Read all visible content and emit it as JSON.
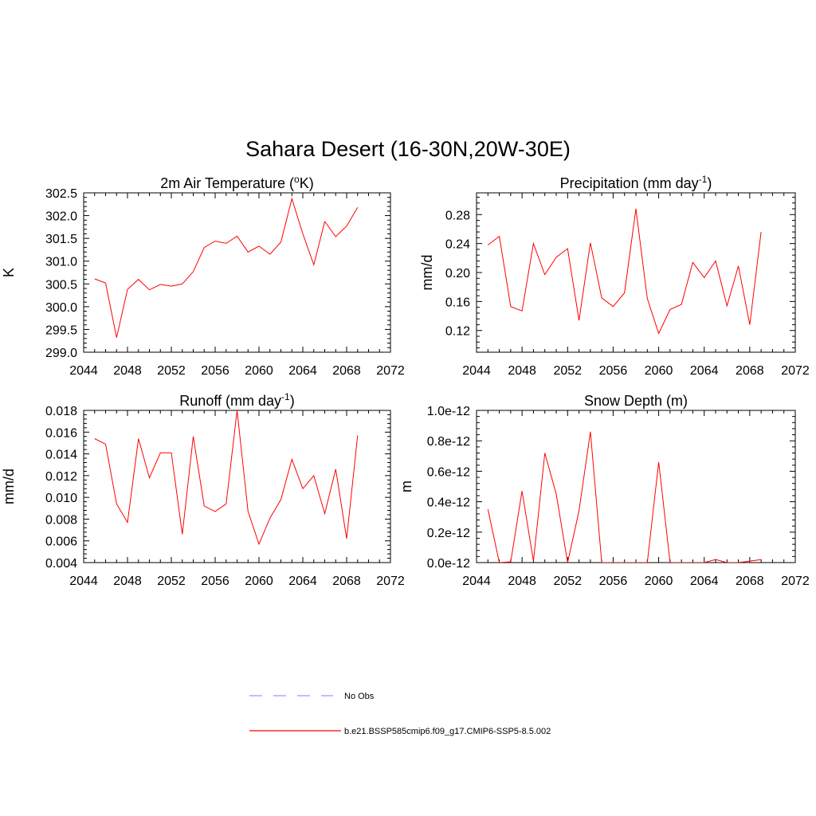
{
  "figure": {
    "title": "Sahara Desert (16-30N,20W-30E)",
    "series_color": "#ff0000",
    "obs_color": "#9999ff"
  },
  "legend": {
    "items": [
      {
        "label": "No Obs",
        "style": "dashed",
        "color": "#9999ff"
      },
      {
        "label": "b.e21.BSSP585cmip6.f09_g17.CMIP6-SSP5-8.5.002",
        "style": "solid",
        "color": "#ff0000"
      }
    ]
  },
  "chart_data": [
    {
      "type": "line",
      "title": "2m Air Temperature (",
      "title_sup": "o",
      "title_after": "K)",
      "ylabel": "K",
      "xlim": [
        2044,
        2072
      ],
      "ylim": [
        299.0,
        302.5
      ],
      "xticks": [
        "2044",
        "2048",
        "2052",
        "2056",
        "2060",
        "2064",
        "2068",
        "2072"
      ],
      "yticks": [
        "299.0",
        "299.5",
        "300.0",
        "300.5",
        "301.0",
        "301.5",
        "302.0",
        "302.5"
      ],
      "yticks_values": [
        299.0,
        299.5,
        300.0,
        300.5,
        301.0,
        301.5,
        302.0,
        302.5
      ],
      "series": [
        {
          "x": [
            2045,
            2046,
            2047,
            2048,
            2049,
            2050,
            2051,
            2052,
            2053,
            2054,
            2055,
            2056,
            2057,
            2058,
            2059,
            2060,
            2061,
            2062,
            2063,
            2064,
            2065,
            2066,
            2067,
            2068,
            2069
          ],
          "values": [
            300.61,
            300.52,
            299.32,
            300.38,
            300.6,
            300.37,
            300.49,
            300.45,
            300.5,
            300.77,
            301.3,
            301.44,
            301.39,
            301.55,
            301.2,
            301.33,
            301.15,
            301.42,
            302.37,
            301.6,
            300.92,
            301.87,
            301.54,
            301.77,
            302.18
          ]
        }
      ]
    },
    {
      "type": "line",
      "title": "Precipitation (mm day",
      "title_sup": "-1",
      "title_after": ")",
      "ylabel": "mm/d",
      "xlim": [
        2044,
        2072
      ],
      "ylim": [
        0.09,
        0.31
      ],
      "xticks": [
        "2044",
        "2048",
        "2052",
        "2056",
        "2060",
        "2064",
        "2068",
        "2072"
      ],
      "yticks": [
        "0.12",
        "0.16",
        "0.20",
        "0.24",
        "0.28"
      ],
      "yticks_values": [
        0.12,
        0.16,
        0.2,
        0.24,
        0.28
      ],
      "series": [
        {
          "x": [
            2045,
            2046,
            2047,
            2048,
            2049,
            2050,
            2051,
            2052,
            2053,
            2054,
            2055,
            2056,
            2057,
            2058,
            2059,
            2060,
            2061,
            2062,
            2063,
            2064,
            2065,
            2066,
            2067,
            2068,
            2069
          ],
          "values": [
            0.238,
            0.25,
            0.153,
            0.147,
            0.24,
            0.197,
            0.221,
            0.233,
            0.134,
            0.241,
            0.165,
            0.153,
            0.172,
            0.288,
            0.164,
            0.116,
            0.149,
            0.156,
            0.214,
            0.193,
            0.216,
            0.154,
            0.209,
            0.128,
            0.256
          ]
        }
      ]
    },
    {
      "type": "line",
      "title": "Runoff (mm day",
      "title_sup": "-1",
      "title_after": ")",
      "ylabel": "mm/d",
      "xlim": [
        2044,
        2072
      ],
      "ylim": [
        0.004,
        0.018
      ],
      "xticks": [
        "2044",
        "2048",
        "2052",
        "2056",
        "2060",
        "2064",
        "2068",
        "2072"
      ],
      "yticks": [
        "0.004",
        "0.006",
        "0.008",
        "0.010",
        "0.012",
        "0.014",
        "0.016",
        "0.018"
      ],
      "yticks_values": [
        0.004,
        0.006,
        0.008,
        0.01,
        0.012,
        0.014,
        0.016,
        0.018
      ],
      "series": [
        {
          "x": [
            2045,
            2046,
            2047,
            2048,
            2049,
            2050,
            2051,
            2052,
            2053,
            2054,
            2055,
            2056,
            2057,
            2058,
            2059,
            2060,
            2061,
            2062,
            2063,
            2064,
            2065,
            2066,
            2067,
            2068,
            2069
          ],
          "values": [
            0.0154,
            0.0149,
            0.0094,
            0.0077,
            0.0154,
            0.0118,
            0.0141,
            0.0141,
            0.0066,
            0.0156,
            0.0092,
            0.0087,
            0.0094,
            0.018,
            0.0087,
            0.0057,
            0.0081,
            0.0098,
            0.0135,
            0.0108,
            0.012,
            0.0085,
            0.0126,
            0.0062,
            0.0157
          ]
        }
      ]
    },
    {
      "type": "line",
      "title": "Snow Depth (m)",
      "title_sup": "",
      "title_after": "",
      "ylabel": "m",
      "xlim": [
        2044,
        2072
      ],
      "ylim": [
        0,
        1e-12
      ],
      "xticks": [
        "2044",
        "2048",
        "2052",
        "2056",
        "2060",
        "2064",
        "2068",
        "2072"
      ],
      "yticks": [
        "0.0e-12",
        "0.2e-12",
        "0.4e-12",
        "0.6e-12",
        "0.8e-12",
        "1.0e-12"
      ],
      "yticks_values": [
        0,
        2e-13,
        4e-13,
        6e-13,
        8e-13,
        1e-12
      ],
      "series": [
        {
          "x": [
            2045,
            2046,
            2047,
            2048,
            2049,
            2050,
            2051,
            2052,
            2053,
            2054,
            2055,
            2056,
            2057,
            2058,
            2059,
            2060,
            2061,
            2062,
            2063,
            2064,
            2065,
            2066,
            2067,
            2068,
            2069
          ],
          "values": [
            3.5e-13,
            0,
            5e-15,
            4.7e-13,
            1e-14,
            7.2e-13,
            4.5e-13,
            0,
            3.4e-13,
            8.6e-13,
            0,
            0,
            0,
            0,
            0,
            6.6e-13,
            0,
            0,
            0,
            0,
            2e-14,
            0,
            0,
            1e-14,
            2e-14
          ]
        }
      ]
    }
  ]
}
